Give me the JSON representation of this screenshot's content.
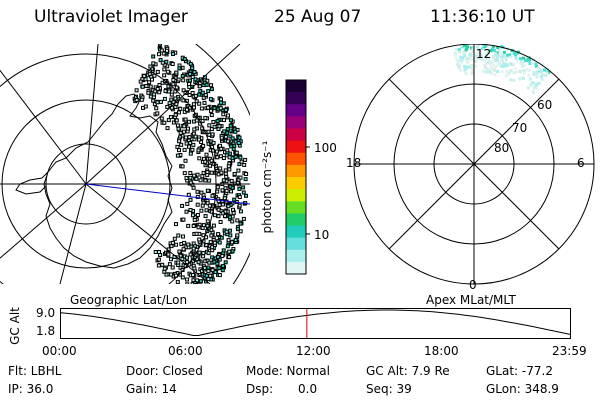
{
  "header": {
    "title": "Ultraviolet Imager",
    "date": "25 Aug 07",
    "time": "11:36:10 UT"
  },
  "left_map": {
    "caption": "Geographic Lat/Lon"
  },
  "right_map": {
    "caption": "Apex MLat/MLT",
    "mlt_labels": {
      "top": "12",
      "left": "18",
      "right": "6",
      "bottom": "0"
    },
    "lat_labels": [
      "60",
      "70",
      "80"
    ]
  },
  "colorbar": {
    "unit_label": "photon cm⁻²s⁻¹",
    "ticks": [
      "100",
      "10"
    ],
    "colors": [
      "#1a0033",
      "#330055",
      "#660088",
      "#990077",
      "#cc0044",
      "#ee1111",
      "#ff5500",
      "#ff9900",
      "#ffcc00",
      "#ccee00",
      "#66dd22",
      "#22cc66",
      "#22ccbb",
      "#66dddd",
      "#aaeeee",
      "#ddf6f6"
    ]
  },
  "altitude_plot": {
    "axis_title": "GC Alt",
    "y_ticks": [
      "9.0",
      "1.8"
    ],
    "x_ticks": [
      "00:00",
      "06:00",
      "12:00",
      "18:00",
      "23:59"
    ],
    "current_time_fraction": 0.483,
    "marker_color": "#dd0000"
  },
  "info": {
    "flt": "Flt: LBHL",
    "ip": "IP: 36.0",
    "door": "Door: Closed",
    "gain": "Gain: 14",
    "mode": "Mode: Normal",
    "dsp_label": "Dsp:",
    "dsp_value": "0.0",
    "gc_alt": "GC Alt: 7.9 Re",
    "seq": "Seq: 39",
    "glat": "GLat: -77.2",
    "glon": "GLon: 348.9"
  }
}
